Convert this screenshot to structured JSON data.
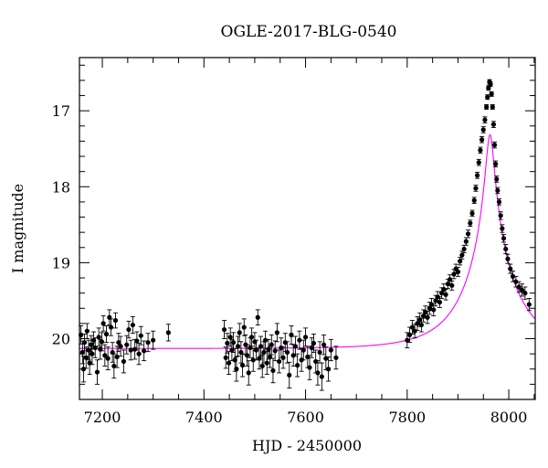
{
  "chart_data": {
    "type": "scatter",
    "title": "OGLE-2017-BLG-0540",
    "xlabel": "HJD - 2450000",
    "ylabel": "I magnitude",
    "xlim": [
      7155,
      8052
    ],
    "ylim": [
      20.8,
      16.3
    ],
    "y_inverted": true,
    "grid": false,
    "x_major_ticks": [
      7200,
      7400,
      7600,
      7800,
      8000
    ],
    "x_minor_step": 50,
    "y_major_ticks": [
      17,
      18,
      19,
      20
    ],
    "y_minor_step": 0.2,
    "colors": {
      "data": "#000000",
      "model": "#ff00ff"
    },
    "model": {
      "name": "",
      "type": "PSPL microlensing fit",
      "t0": 7963,
      "tE": 100,
      "u0": 0.075,
      "I_baseline": 20.13
    },
    "series": [
      {
        "name": "",
        "points": [
          [
            7158,
            19.95,
            0.12
          ],
          [
            7161,
            20.18,
            0.15
          ],
          [
            7163,
            20.4,
            0.17
          ],
          [
            7165,
            20.05,
            0.11
          ],
          [
            7168,
            20.25,
            0.14
          ],
          [
            7170,
            19.9,
            0.1
          ],
          [
            7173,
            20.15,
            0.13
          ],
          [
            7175,
            20.32,
            0.15
          ],
          [
            7178,
            20.08,
            0.12
          ],
          [
            7180,
            20.2,
            0.14
          ],
          [
            7183,
            20.02,
            0.11
          ],
          [
            7186,
            20.12,
            0.13
          ],
          [
            7190,
            20.44,
            0.16
          ],
          [
            7193,
            19.98,
            0.12
          ],
          [
            7196,
            20.14,
            0.13
          ],
          [
            7199,
            20.04,
            0.12
          ],
          [
            7202,
            19.8,
            0.1
          ],
          [
            7205,
            20.22,
            0.14
          ],
          [
            7208,
            19.94,
            0.11
          ],
          [
            7211,
            20.26,
            0.15
          ],
          [
            7214,
            19.72,
            0.1
          ],
          [
            7217,
            19.85,
            0.11
          ],
          [
            7220,
            20.18,
            0.13
          ],
          [
            7223,
            20.36,
            0.16
          ],
          [
            7226,
            19.76,
            0.1
          ],
          [
            7229,
            20.24,
            0.14
          ],
          [
            7232,
            20.05,
            0.12
          ],
          [
            7236,
            20.1,
            0.13
          ],
          [
            7242,
            20.3,
            0.15
          ],
          [
            7248,
            20.08,
            0.12
          ],
          [
            7252,
            19.88,
            0.11
          ],
          [
            7256,
            20.15,
            0.13
          ],
          [
            7260,
            19.82,
            0.11
          ],
          [
            7264,
            20.14,
            0.13
          ],
          [
            7268,
            20.03,
            0.12
          ],
          [
            7272,
            20.2,
            0.14
          ],
          [
            7276,
            19.96,
            0.12
          ],
          [
            7282,
            20.16,
            0.13
          ],
          [
            7290,
            20.05,
            0.12
          ],
          [
            7300,
            20.02,
            0.12
          ],
          [
            7330,
            19.92,
            0.11
          ],
          [
            7440,
            19.88,
            0.12
          ],
          [
            7443,
            20.25,
            0.14
          ],
          [
            7446,
            20.06,
            0.13
          ],
          [
            7449,
            20.32,
            0.15
          ],
          [
            7452,
            19.98,
            0.12
          ],
          [
            7455,
            20.15,
            0.14
          ],
          [
            7458,
            20.05,
            0.13
          ],
          [
            7461,
            20.28,
            0.15
          ],
          [
            7464,
            20.4,
            0.16
          ],
          [
            7467,
            20.1,
            0.13
          ],
          [
            7470,
            19.92,
            0.12
          ],
          [
            7473,
            20.18,
            0.14
          ],
          [
            7476,
            20.35,
            0.15
          ],
          [
            7479,
            19.85,
            0.11
          ],
          [
            7482,
            20.08,
            0.13
          ],
          [
            7485,
            20.22,
            0.14
          ],
          [
            7488,
            20.45,
            0.16
          ],
          [
            7491,
            20.12,
            0.13
          ],
          [
            7494,
            19.98,
            0.12
          ],
          [
            7497,
            20.28,
            0.15
          ],
          [
            7500,
            20.04,
            0.12
          ],
          [
            7503,
            20.15,
            0.13
          ],
          [
            7506,
            19.72,
            0.1
          ],
          [
            7509,
            20.26,
            0.14
          ],
          [
            7512,
            20.1,
            0.13
          ],
          [
            7515,
            20.36,
            0.15
          ],
          [
            7518,
            20.18,
            0.14
          ],
          [
            7521,
            20.02,
            0.12
          ],
          [
            7524,
            20.32,
            0.15
          ],
          [
            7527,
            20.14,
            0.13
          ],
          [
            7530,
            20.24,
            0.14
          ],
          [
            7533,
            20.08,
            0.13
          ],
          [
            7536,
            20.42,
            0.16
          ],
          [
            7540,
            20.16,
            0.13
          ],
          [
            7544,
            19.92,
            0.12
          ],
          [
            7548,
            20.3,
            0.15
          ],
          [
            7552,
            20.12,
            0.13
          ],
          [
            7556,
            20.25,
            0.14
          ],
          [
            7560,
            20.05,
            0.12
          ],
          [
            7564,
            20.18,
            0.14
          ],
          [
            7568,
            20.48,
            0.17
          ],
          [
            7572,
            19.95,
            0.12
          ],
          [
            7576,
            20.22,
            0.14
          ],
          [
            7580,
            20.1,
            0.13
          ],
          [
            7584,
            20.35,
            0.15
          ],
          [
            7588,
            20.02,
            0.12
          ],
          [
            7592,
            20.28,
            0.15
          ],
          [
            7596,
            20.15,
            0.13
          ],
          [
            7600,
            19.98,
            0.12
          ],
          [
            7604,
            20.24,
            0.14
          ],
          [
            7608,
            20.38,
            0.16
          ],
          [
            7612,
            20.12,
            0.13
          ],
          [
            7616,
            20.06,
            0.12
          ],
          [
            7620,
            20.3,
            0.15
          ],
          [
            7624,
            20.45,
            0.16
          ],
          [
            7628,
            20.18,
            0.14
          ],
          [
            7632,
            20.5,
            0.18
          ],
          [
            7636,
            20.08,
            0.13
          ],
          [
            7640,
            20.26,
            0.15
          ],
          [
            7645,
            20.4,
            0.16
          ],
          [
            7650,
            20.15,
            0.14
          ],
          [
            7660,
            20.25,
            0.15
          ],
          [
            7800,
            20.02,
            0.1
          ],
          [
            7805,
            19.95,
            0.1
          ],
          [
            7810,
            19.85,
            0.09
          ],
          [
            7815,
            19.9,
            0.09
          ],
          [
            7820,
            19.8,
            0.09
          ],
          [
            7825,
            19.75,
            0.09
          ],
          [
            7828,
            19.82,
            0.09
          ],
          [
            7832,
            19.7,
            0.08
          ],
          [
            7836,
            19.65,
            0.08
          ],
          [
            7840,
            19.72,
            0.08
          ],
          [
            7844,
            19.6,
            0.08
          ],
          [
            7848,
            19.55,
            0.08
          ],
          [
            7852,
            19.62,
            0.08
          ],
          [
            7856,
            19.5,
            0.07
          ],
          [
            7860,
            19.45,
            0.07
          ],
          [
            7864,
            19.52,
            0.07
          ],
          [
            7868,
            19.4,
            0.07
          ],
          [
            7872,
            19.35,
            0.07
          ],
          [
            7876,
            19.42,
            0.07
          ],
          [
            7880,
            19.28,
            0.06
          ],
          [
            7884,
            19.22,
            0.06
          ],
          [
            7888,
            19.3,
            0.06
          ],
          [
            7892,
            19.15,
            0.06
          ],
          [
            7896,
            19.08,
            0.06
          ],
          [
            7900,
            19.12,
            0.06
          ],
          [
            7904,
            18.98,
            0.05
          ],
          [
            7908,
            18.9,
            0.05
          ],
          [
            7912,
            18.82,
            0.05
          ],
          [
            7916,
            18.72,
            0.05
          ],
          [
            7920,
            18.62,
            0.05
          ],
          [
            7924,
            18.48,
            0.04
          ],
          [
            7928,
            18.35,
            0.04
          ],
          [
            7932,
            18.18,
            0.04
          ],
          [
            7935,
            18.02,
            0.04
          ],
          [
            7938,
            17.85,
            0.04
          ],
          [
            7941,
            17.68,
            0.04
          ],
          [
            7944,
            17.52,
            0.04
          ],
          [
            7947,
            17.38,
            0.04
          ],
          [
            7950,
            17.25,
            0.04
          ],
          [
            7953,
            17.12,
            0.04
          ],
          [
            7956,
            16.95,
            0.03
          ],
          [
            7958,
            16.82,
            0.03
          ],
          [
            7960,
            16.7,
            0.03
          ],
          [
            7962,
            16.62,
            0.03
          ],
          [
            7964,
            16.65,
            0.03
          ],
          [
            7966,
            16.78,
            0.03
          ],
          [
            7968,
            16.95,
            0.03
          ],
          [
            7970,
            17.18,
            0.04
          ],
          [
            7972,
            17.45,
            0.04
          ],
          [
            7974,
            17.7,
            0.04
          ],
          [
            7976,
            17.9,
            0.04
          ],
          [
            7978,
            18.05,
            0.04
          ],
          [
            7981,
            18.2,
            0.04
          ],
          [
            7984,
            18.38,
            0.05
          ],
          [
            7987,
            18.55,
            0.05
          ],
          [
            7990,
            18.68,
            0.05
          ],
          [
            7994,
            18.82,
            0.06
          ],
          [
            7998,
            18.95,
            0.06
          ],
          [
            8003,
            19.08,
            0.06
          ],
          [
            8008,
            19.18,
            0.07
          ],
          [
            8014,
            19.25,
            0.07
          ],
          [
            8020,
            19.32,
            0.07
          ],
          [
            8026,
            19.36,
            0.08
          ],
          [
            8032,
            19.4,
            0.08
          ],
          [
            8040,
            19.55,
            0.08
          ]
        ]
      }
    ]
  }
}
